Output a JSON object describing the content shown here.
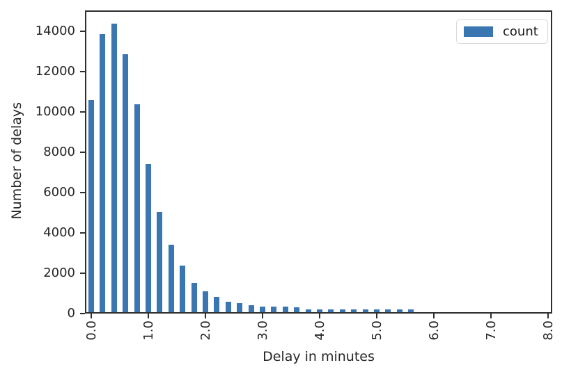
{
  "chart_data": {
    "type": "bar",
    "title": "",
    "xlabel": "Delay in minutes",
    "ylabel": "Number of delays",
    "categories": [
      "0.0",
      "0.2",
      "0.4",
      "0.6",
      "0.8",
      "1.0",
      "1.2",
      "1.4",
      "1.6",
      "1.8",
      "2.0",
      "2.2",
      "2.4",
      "2.6",
      "2.8",
      "3.0",
      "3.2",
      "3.4",
      "3.6",
      "3.8",
      "4.0",
      "4.2",
      "4.4",
      "4.6",
      "4.8",
      "5.0",
      "5.2",
      "5.4",
      "5.6"
    ],
    "series": [
      {
        "name": "count",
        "color": "#3a76b1",
        "values": [
          10500,
          13800,
          14300,
          12800,
          10300,
          7350,
          4950,
          3350,
          2300,
          1450,
          1050,
          760,
          500,
          460,
          350,
          270,
          270,
          280,
          225,
          140,
          155,
          140,
          130,
          140,
          130,
          135,
          125,
          135,
          125
        ]
      }
    ],
    "x_axis": {
      "tick_labels": [
        "0.0",
        "1.0",
        "2.0",
        "3.0",
        "4.0",
        "5.0",
        "6.0",
        "7.0",
        "8.0"
      ],
      "tick_positions": [
        0,
        5,
        10,
        15,
        20,
        25,
        30,
        35,
        40
      ],
      "total_positions": 41,
      "label_rotation_deg": 90
    },
    "y_axis": {
      "ticks": [
        0,
        2000,
        4000,
        6000,
        8000,
        10000,
        12000,
        14000
      ],
      "lim": [
        0,
        15000
      ]
    },
    "grid": false,
    "legend": {
      "position": "upper right",
      "entries": [
        {
          "label": "count",
          "color": "#3a76b1"
        }
      ]
    }
  },
  "colors": {
    "bar": "#3a76b1",
    "axis": "#2e2e2e",
    "text": "#262626",
    "legend_border": "#d9d9d9",
    "background": "#ffffff"
  }
}
